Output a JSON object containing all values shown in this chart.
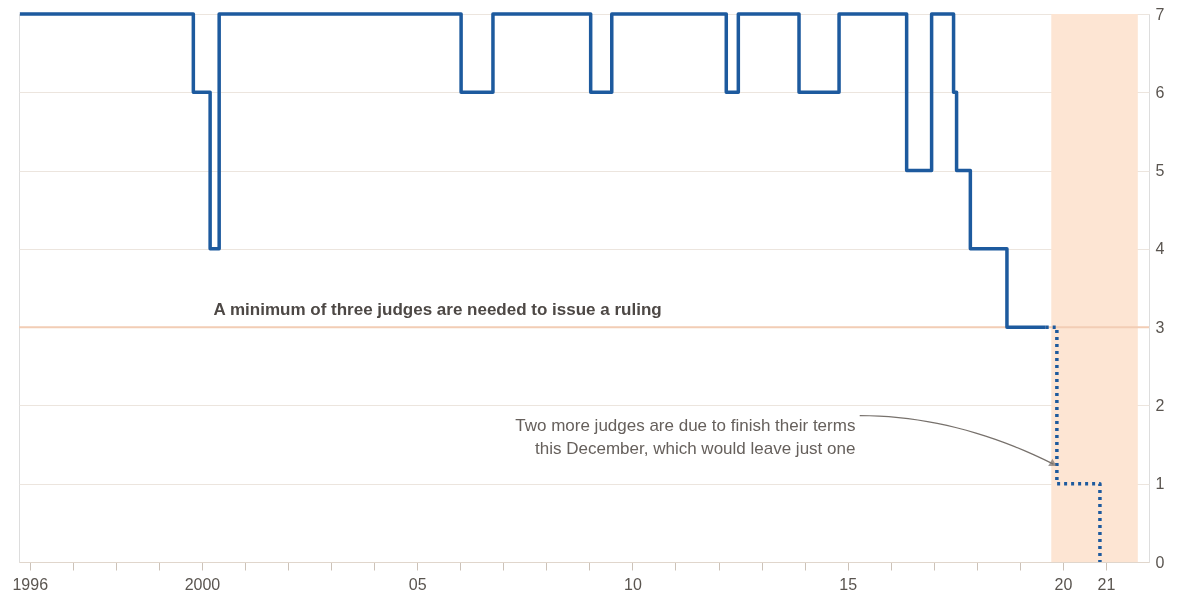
{
  "chart_data": {
    "type": "step",
    "xlim": [
      1995.75,
      2022.0
    ],
    "ylim": [
      0,
      7
    ],
    "xticks": [
      1996,
      {
        "value": 1997,
        "label": null
      },
      {
        "value": 1998,
        "label": null
      },
      {
        "value": 1999,
        "label": null
      },
      2000,
      {
        "value": 2001,
        "label": null
      },
      {
        "value": 2002,
        "label": null
      },
      {
        "value": 2003,
        "label": null
      },
      {
        "value": 2004,
        "label": null
      },
      {
        "value": 2005,
        "label": "05"
      },
      {
        "value": 2006,
        "label": null
      },
      {
        "value": 2007,
        "label": null
      },
      {
        "value": 2008,
        "label": null
      },
      {
        "value": 2009,
        "label": null
      },
      {
        "value": 2010,
        "label": "10"
      },
      {
        "value": 2011,
        "label": null
      },
      {
        "value": 2012,
        "label": null
      },
      {
        "value": 2013,
        "label": null
      },
      {
        "value": 2014,
        "label": null
      },
      {
        "value": 2015,
        "label": "15"
      },
      {
        "value": 2016,
        "label": null
      },
      {
        "value": 2017,
        "label": null
      },
      {
        "value": 2018,
        "label": null
      },
      {
        "value": 2019,
        "label": null
      },
      {
        "value": 2020,
        "label": "20"
      },
      {
        "value": 2021,
        "label": "21"
      }
    ],
    "yticks": [
      0,
      1,
      2,
      3,
      4,
      5,
      6,
      7
    ],
    "grid": "y",
    "marker": "none",
    "series": [
      {
        "color": "#1d5a9e",
        "line_style": "solid",
        "x": [
          1995.77,
          1999.8,
          2000.19,
          2000.4,
          2006.02,
          2006.76,
          2009.03,
          2009.52,
          2012.18,
          2012.46,
          2013.87,
          2014.8,
          2016.37,
          2016.95,
          2017.46,
          2017.53,
          2017.85,
          2018.7,
          2019.6
        ],
        "values": [
          7,
          6,
          4,
          7,
          6,
          7,
          6,
          7,
          6,
          7,
          6,
          7,
          5,
          7,
          6,
          5,
          4,
          3,
          3
        ]
      },
      {
        "color": "#1d5a9e",
        "line_style": "dotted",
        "x": [
          2019.6,
          2019.86,
          2020.86
        ],
        "values": [
          3,
          1,
          0
        ]
      }
    ],
    "ref_lines": [
      {
        "axis": "y",
        "value": 3,
        "label": "A minimum of three judges are needed to issue a ruling",
        "color": "#f2cdb5"
      }
    ],
    "bands": [
      {
        "axis": "x",
        "from": 2019.73,
        "to": 2021.74,
        "color": "#fde5d3"
      }
    ],
    "annotations": [
      "Two more judges are due to finish their terms\nthis December, which would leave just one"
    ]
  }
}
